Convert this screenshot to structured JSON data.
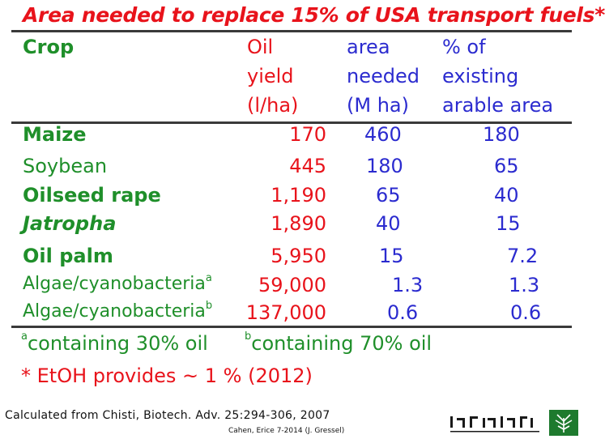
{
  "title": "Area needed to replace 15% of USA transport fuels*",
  "headers": {
    "crop": "Crop",
    "oil_yield": [
      "Oil",
      "yield",
      "(l/ha)"
    ],
    "area": [
      "area",
      "needed",
      "(M ha)"
    ],
    "percent": [
      "% of",
      "existing",
      "arable area"
    ]
  },
  "rows": [
    {
      "crop": "Maize",
      "sup": "",
      "yield": "170",
      "area": "460",
      "percent": "180"
    },
    {
      "crop": "Soybean",
      "sup": "",
      "yield": "445",
      "area": "180",
      "percent": "65"
    },
    {
      "crop": "Oilseed rape",
      "sup": "",
      "yield": "1,190",
      "area": "65",
      "percent": "40"
    },
    {
      "crop": "Jatropha",
      "sup": "",
      "yield": "1,890",
      "area": "40",
      "percent": "15"
    },
    {
      "crop": "Oil palm",
      "sup": "",
      "yield": "5,950",
      "area": "15",
      "percent": "7.2"
    },
    {
      "crop": "Algae/cyanobacteria",
      "sup": "a",
      "yield": "59,000",
      "area": "1.3",
      "percent": "1.3"
    },
    {
      "crop": "Algae/cyanobacteria",
      "sup": "b",
      "yield": "137,000",
      "area": "0.6",
      "percent": "0.6"
    }
  ],
  "footnotes": {
    "a_mark": "a",
    "a_text": "containing 30% oil",
    "b_mark": "b",
    "b_text": "containing 70% oil",
    "star_note": "* EtOH provides ~ 1 % (2012)"
  },
  "citation": "Calculated from Chisti, Biotech. Adv. 25:294-306, 2007",
  "credit": "Cahen, Erice 7-2014 (J. Gressel)",
  "colors": {
    "title": "#e8131b",
    "crop": "#1f8f2a",
    "yield": "#e8131b",
    "values": "#2b2bcf"
  },
  "logo_icon": "weizmann-institute-logo-icon"
}
